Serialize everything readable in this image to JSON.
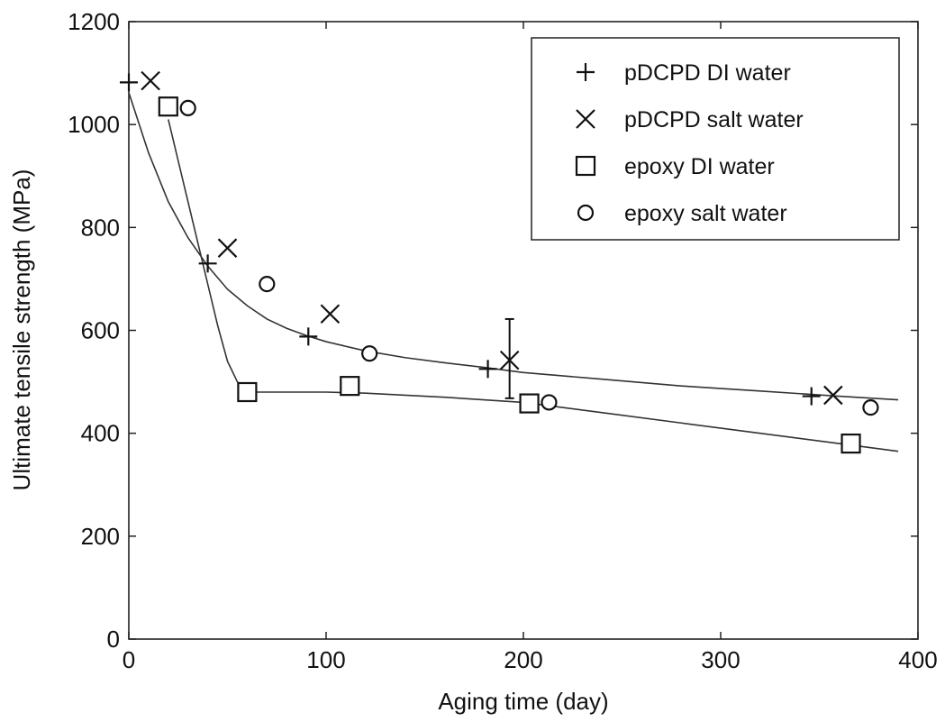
{
  "chart_data": {
    "type": "scatter",
    "xlabel": "Aging time (day)",
    "ylabel": "Ultimate tensile strength (MPa)",
    "xlim": [
      0,
      400
    ],
    "ylim": [
      0,
      1200
    ],
    "x_ticks": [
      0,
      100,
      200,
      300,
      400
    ],
    "y_ticks": [
      0,
      200,
      400,
      600,
      800,
      1000,
      1200
    ],
    "x_tick_labels": [
      "0",
      "100",
      "200",
      "300",
      "400"
    ],
    "y_tick_labels": [
      "0",
      "200",
      "400",
      "600",
      "800",
      "1000",
      "1200"
    ],
    "grid": false,
    "legend_position": "top-right",
    "series": [
      {
        "name": "pDCPD DI water",
        "marker": "plus",
        "color": "#111111",
        "x": [
          0,
          40,
          91,
          182,
          346
        ],
        "y": [
          1082,
          730,
          588,
          525,
          472
        ]
      },
      {
        "name": "pDCPD salt water",
        "marker": "x",
        "color": "#111111",
        "x": [
          11,
          50,
          102,
          193,
          357
        ],
        "y": [
          1085,
          760,
          632,
          542,
          474
        ]
      },
      {
        "name": "epoxy DI water",
        "marker": "square",
        "color": "#111111",
        "x": [
          20,
          60,
          112,
          203,
          366
        ],
        "y": [
          1035,
          480,
          492,
          458,
          380
        ]
      },
      {
        "name": "epoxy salt water",
        "marker": "circle",
        "color": "#111111",
        "x": [
          30,
          70,
          122,
          213,
          376
        ],
        "y": [
          1032,
          690,
          555,
          460,
          450
        ]
      }
    ],
    "error_bars": [
      {
        "x": 193,
        "low": 468,
        "high": 622
      }
    ],
    "fit_curves": [
      {
        "x": [
          0,
          10,
          20,
          30,
          40,
          50,
          60,
          70,
          80,
          90,
          100,
          120,
          140,
          160,
          180,
          200,
          240,
          280,
          320,
          360,
          390
        ],
        "y": [
          1062,
          945,
          850,
          780,
          725,
          680,
          648,
          622,
          604,
          590,
          578,
          560,
          547,
          537,
          528,
          518,
          505,
          492,
          482,
          472,
          465
        ]
      },
      {
        "x": [
          20,
          25,
          30,
          35,
          40,
          45,
          50,
          55,
          60,
          80,
          100,
          120,
          160,
          200,
          240,
          280,
          320,
          360,
          390
        ],
        "y": [
          1010,
          930,
          850,
          770,
          690,
          610,
          540,
          500,
          480,
          480,
          480,
          478,
          470,
          460,
          440,
          420,
          400,
          380,
          365
        ]
      }
    ]
  }
}
